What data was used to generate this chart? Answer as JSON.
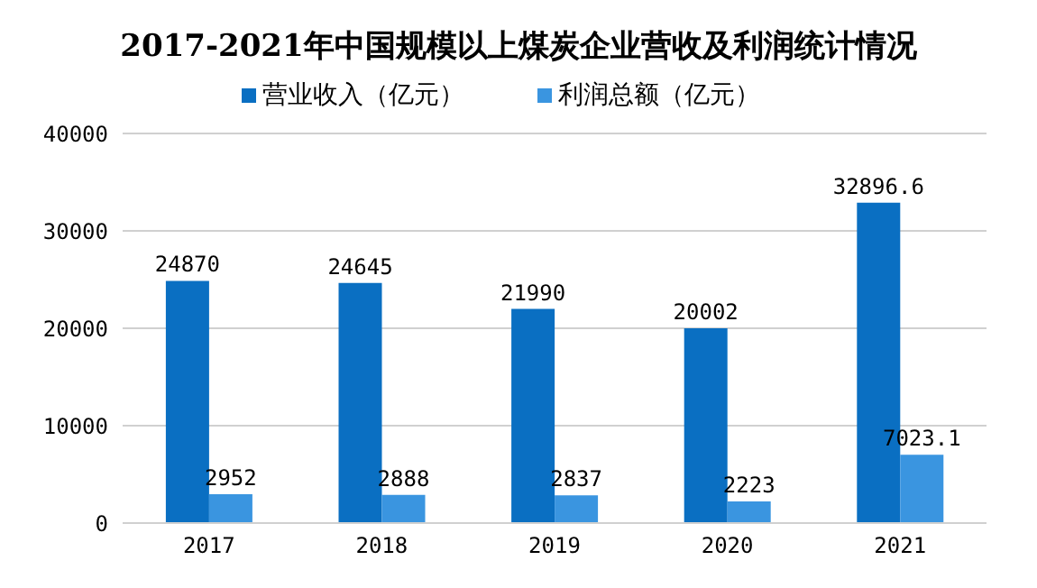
{
  "chart_data": {
    "type": "bar",
    "title": "2017-2021年中国规模以上煤炭企业营收及利润统计情况",
    "categories": [
      "2017",
      "2018",
      "2019",
      "2020",
      "2021"
    ],
    "series": [
      {
        "name": "营业收入（亿元）",
        "color": "#0a6fc2",
        "values": [
          24870,
          24645,
          21990,
          20002,
          32896.6
        ]
      },
      {
        "name": "利润总额（亿元）",
        "color": "#3a95e0",
        "values": [
          2952,
          2888,
          2837,
          2223,
          7023.1
        ]
      }
    ],
    "ylim": [
      0,
      40000
    ],
    "yticks": [
      0,
      10000,
      20000,
      30000,
      40000
    ],
    "grid": "y",
    "legend": "top",
    "data_labels": true
  }
}
